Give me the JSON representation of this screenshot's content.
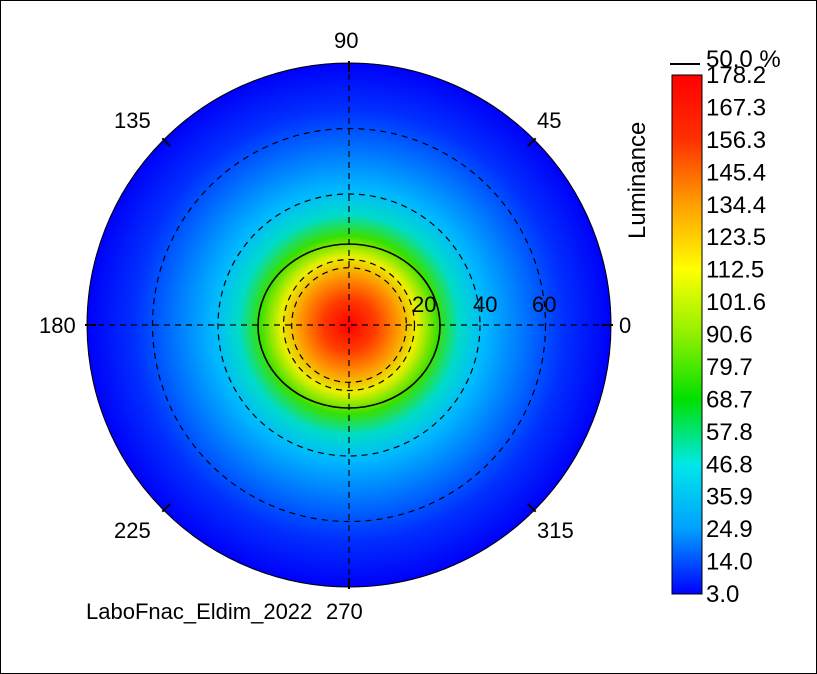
{
  "chart_data": {
    "type": "heatmap",
    "subtype": "polar-conoscope",
    "colorbar_title": "Luminance",
    "contour_label": "50.0 %",
    "colorbar_ticks": [
      "178.2",
      "167.3",
      "156.3",
      "145.4",
      "134.4",
      "123.5",
      "112.5",
      "101.6",
      "90.6",
      "79.7",
      "68.7",
      "57.8",
      "46.8",
      "35.9",
      "24.9",
      "14.0",
      "3.0"
    ],
    "value_min": 3.0,
    "value_max": 178.2,
    "angle_labels": [
      "0",
      "45",
      "90",
      "135",
      "180",
      "225",
      "270",
      "315"
    ],
    "radial_labels": [
      "20",
      "40",
      "60"
    ],
    "radial_max": 80,
    "contour_fraction": 0.5,
    "source_label": "LaboFnac_Eldim_2022",
    "colormap": [
      "#0000ff",
      "#00a0ff",
      "#00e8e8",
      "#00e000",
      "#90f000",
      "#ffff00",
      "#ffa000",
      "#ff3000",
      "#ff0000"
    ]
  }
}
